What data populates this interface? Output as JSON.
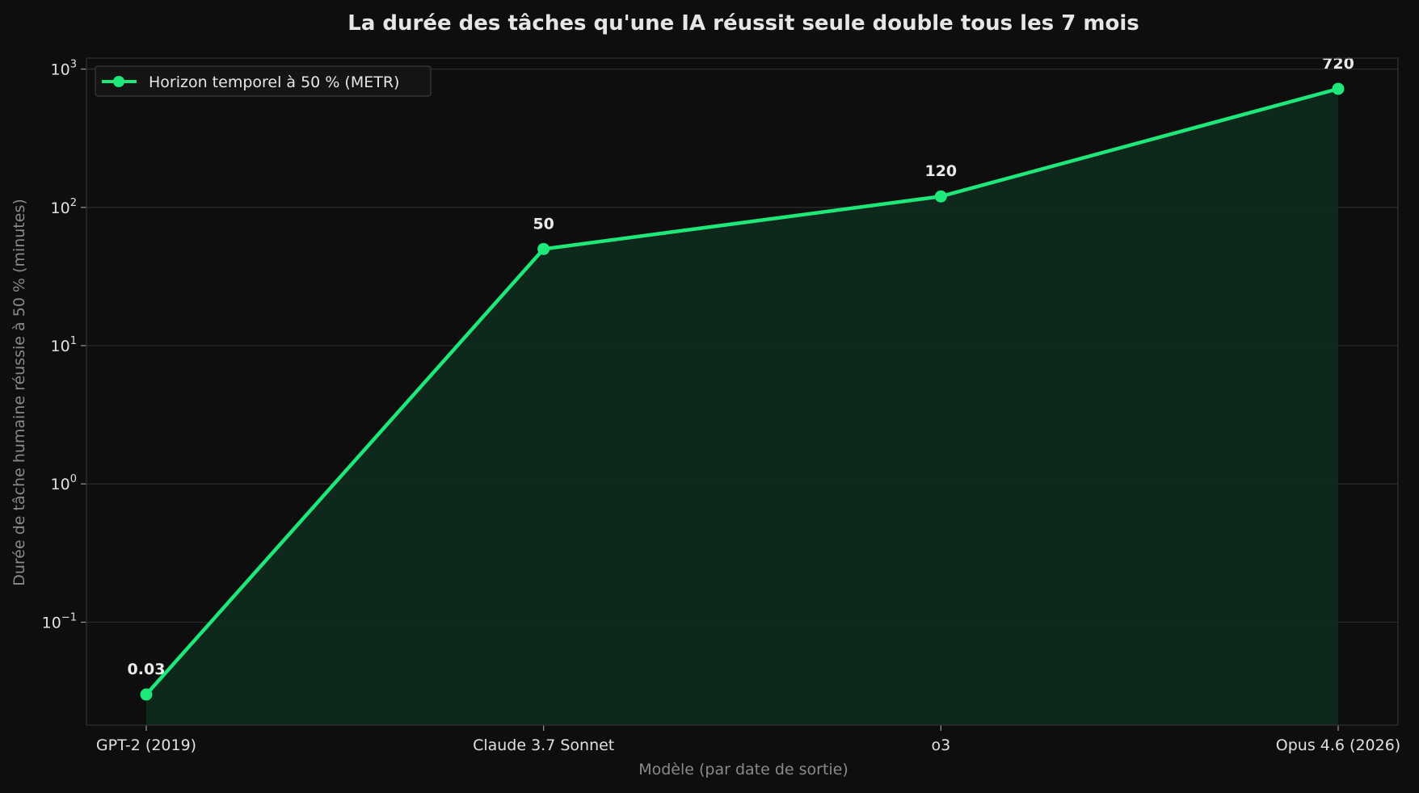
{
  "chart_data": {
    "type": "line",
    "title": "La durée des tâches qu'une IA réussit seule double tous les 7 mois",
    "xlabel": "Modèle (par date de sortie)",
    "ylabel": "Durée de tâche humaine réussie à 50 % (minutes)",
    "yscale": "log",
    "ylim": [
      0.018,
      1200
    ],
    "yticks": [
      {
        "base": "10",
        "exp": "3",
        "value": 1000
      },
      {
        "base": "10",
        "exp": "2",
        "value": 100
      },
      {
        "base": "10",
        "exp": "1",
        "value": 10
      },
      {
        "base": "10",
        "exp": "0",
        "value": 1
      },
      {
        "base": "10",
        "exp": "−1",
        "value": 0.1
      }
    ],
    "categories": [
      "GPT-2 (2019)",
      "Claude 3.7 Sonnet",
      "o3",
      "Opus 4.6 (2026)"
    ],
    "series": [
      {
        "name": "Horizon temporel à 50 % (METR)",
        "values": [
          0.03,
          50,
          120,
          720
        ],
        "labels": [
          "0.03",
          "50",
          "120",
          "720"
        ],
        "color": "#1ee87a",
        "fill_color": "#0f2a1d"
      }
    ],
    "grid": true,
    "legend": "top-left"
  },
  "colors": {
    "background": "#0e0e0e",
    "line": "#1ee87a",
    "area": "#0f2a1d"
  }
}
